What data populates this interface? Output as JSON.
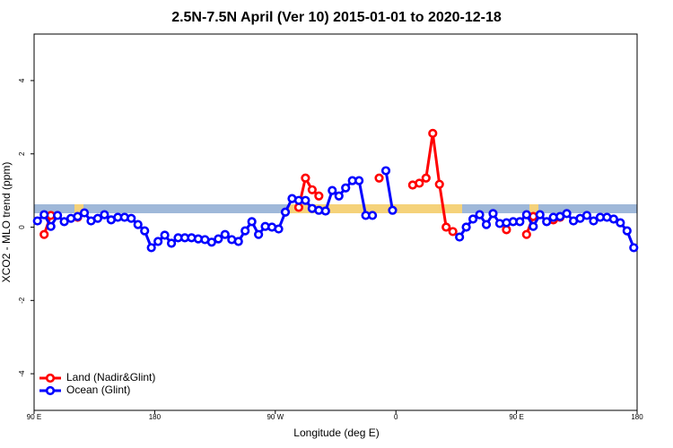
{
  "chart_data": {
    "type": "line",
    "title": "2.5N-7.5N April (Ver 10)   2015-01-01 to 2020-12-18",
    "x_label": "Longitude (deg E)",
    "y_label": "XCO2 - MLO trend (ppm)",
    "legend_position": "bottom-left",
    "xlim": [
      90,
      540
    ],
    "xticks": [
      {
        "value": 90,
        "label": "90 E"
      },
      180,
      {
        "value": 270,
        "label": "90 W"
      },
      {
        "value": 360,
        "label": "0"
      },
      {
        "value": 450,
        "label": "90 E"
      },
      {
        "value": 540,
        "label": "180"
      }
    ],
    "ylim": [
      -5,
      5.27
    ],
    "yticks": [
      -4,
      -2,
      0,
      2,
      4
    ],
    "x": [
      92.5,
      97.5,
      102.5,
      107.5,
      112.5,
      117.5,
      122.5,
      127.5,
      132.5,
      137.5,
      142.5,
      147.5,
      152.5,
      157.5,
      162.5,
      167.5,
      172.5,
      177.5,
      182.5,
      187.5,
      192.5,
      197.5,
      202.5,
      207.5,
      212.5,
      217.5,
      222.5,
      227.5,
      232.5,
      237.5,
      242.5,
      247.5,
      252.5,
      257.5,
      262.5,
      267.5,
      272.5,
      277.5,
      282.5,
      287.5,
      292.5,
      297.5,
      302.5,
      307.5,
      312.5,
      317.5,
      322.5,
      327.5,
      332.5,
      337.5,
      342.5,
      347.5,
      352.5,
      357.5,
      362.5,
      367.5,
      372.5,
      377.5,
      382.5,
      387.5,
      392.5,
      397.5,
      402.5,
      407.5,
      412.5,
      417.5,
      422.5,
      427.5,
      432.5,
      437.5,
      442.5,
      447.5,
      452.5,
      457.5,
      462.5,
      467.5,
      472.5,
      477.5,
      482.5,
      487.5,
      492.5,
      497.5,
      502.5,
      507.5,
      512.5,
      517.5,
      522.5,
      527.5,
      532.5,
      537.5
    ],
    "series": [
      {
        "name": "Land (Nadir&Glint)",
        "color": "#ff0000",
        "values": [
          null,
          -0.2,
          0.32,
          null,
          null,
          null,
          0.27,
          null,
          null,
          null,
          null,
          null,
          null,
          null,
          null,
          null,
          null,
          null,
          null,
          null,
          null,
          null,
          null,
          null,
          null,
          null,
          null,
          null,
          null,
          null,
          null,
          null,
          null,
          null,
          null,
          null,
          null,
          null,
          null,
          0.54,
          1.34,
          1.02,
          0.85,
          null,
          null,
          null,
          null,
          null,
          null,
          null,
          null,
          1.34,
          null,
          null,
          null,
          null,
          1.15,
          1.2,
          1.34,
          2.56,
          1.17,
          0,
          -0.12,
          null,
          null,
          null,
          null,
          null,
          null,
          null,
          -0.07,
          null,
          null,
          -0.2,
          0.29,
          null,
          null,
          0.2,
          0.27,
          null,
          null,
          null,
          null,
          null,
          null,
          null,
          null,
          null,
          null,
          null
        ]
      },
      {
        "name": "Ocean (Glint)",
        "color": "#0000ff",
        "values": [
          0.17,
          0.34,
          0.02,
          0.32,
          0.15,
          0.24,
          0.29,
          0.39,
          0.17,
          0.24,
          0.34,
          0.2,
          0.27,
          0.27,
          0.24,
          0.07,
          -0.1,
          -0.56,
          -0.39,
          -0.22,
          -0.44,
          -0.29,
          -0.29,
          -0.29,
          -0.32,
          -0.34,
          -0.41,
          -0.32,
          -0.2,
          -0.34,
          -0.39,
          -0.1,
          0.15,
          -0.2,
          0.02,
          0,
          -0.05,
          0.41,
          0.78,
          0.73,
          0.73,
          0.51,
          0.46,
          0.44,
          1.0,
          0.85,
          1.07,
          1.27,
          1.27,
          0.32,
          0.32,
          null,
          1.54,
          0.46,
          null,
          null,
          null,
          null,
          null,
          null,
          null,
          null,
          null,
          -0.27,
          0,
          0.22,
          0.34,
          0.07,
          0.37,
          0.1,
          0.12,
          0.15,
          0.15,
          0.34,
          0.02,
          0.34,
          0.15,
          0.27,
          0.29,
          0.37,
          0.17,
          0.24,
          0.32,
          0.17,
          0.27,
          0.27,
          0.22,
          0.12,
          -0.1,
          -0.56
        ]
      }
    ]
  }
}
